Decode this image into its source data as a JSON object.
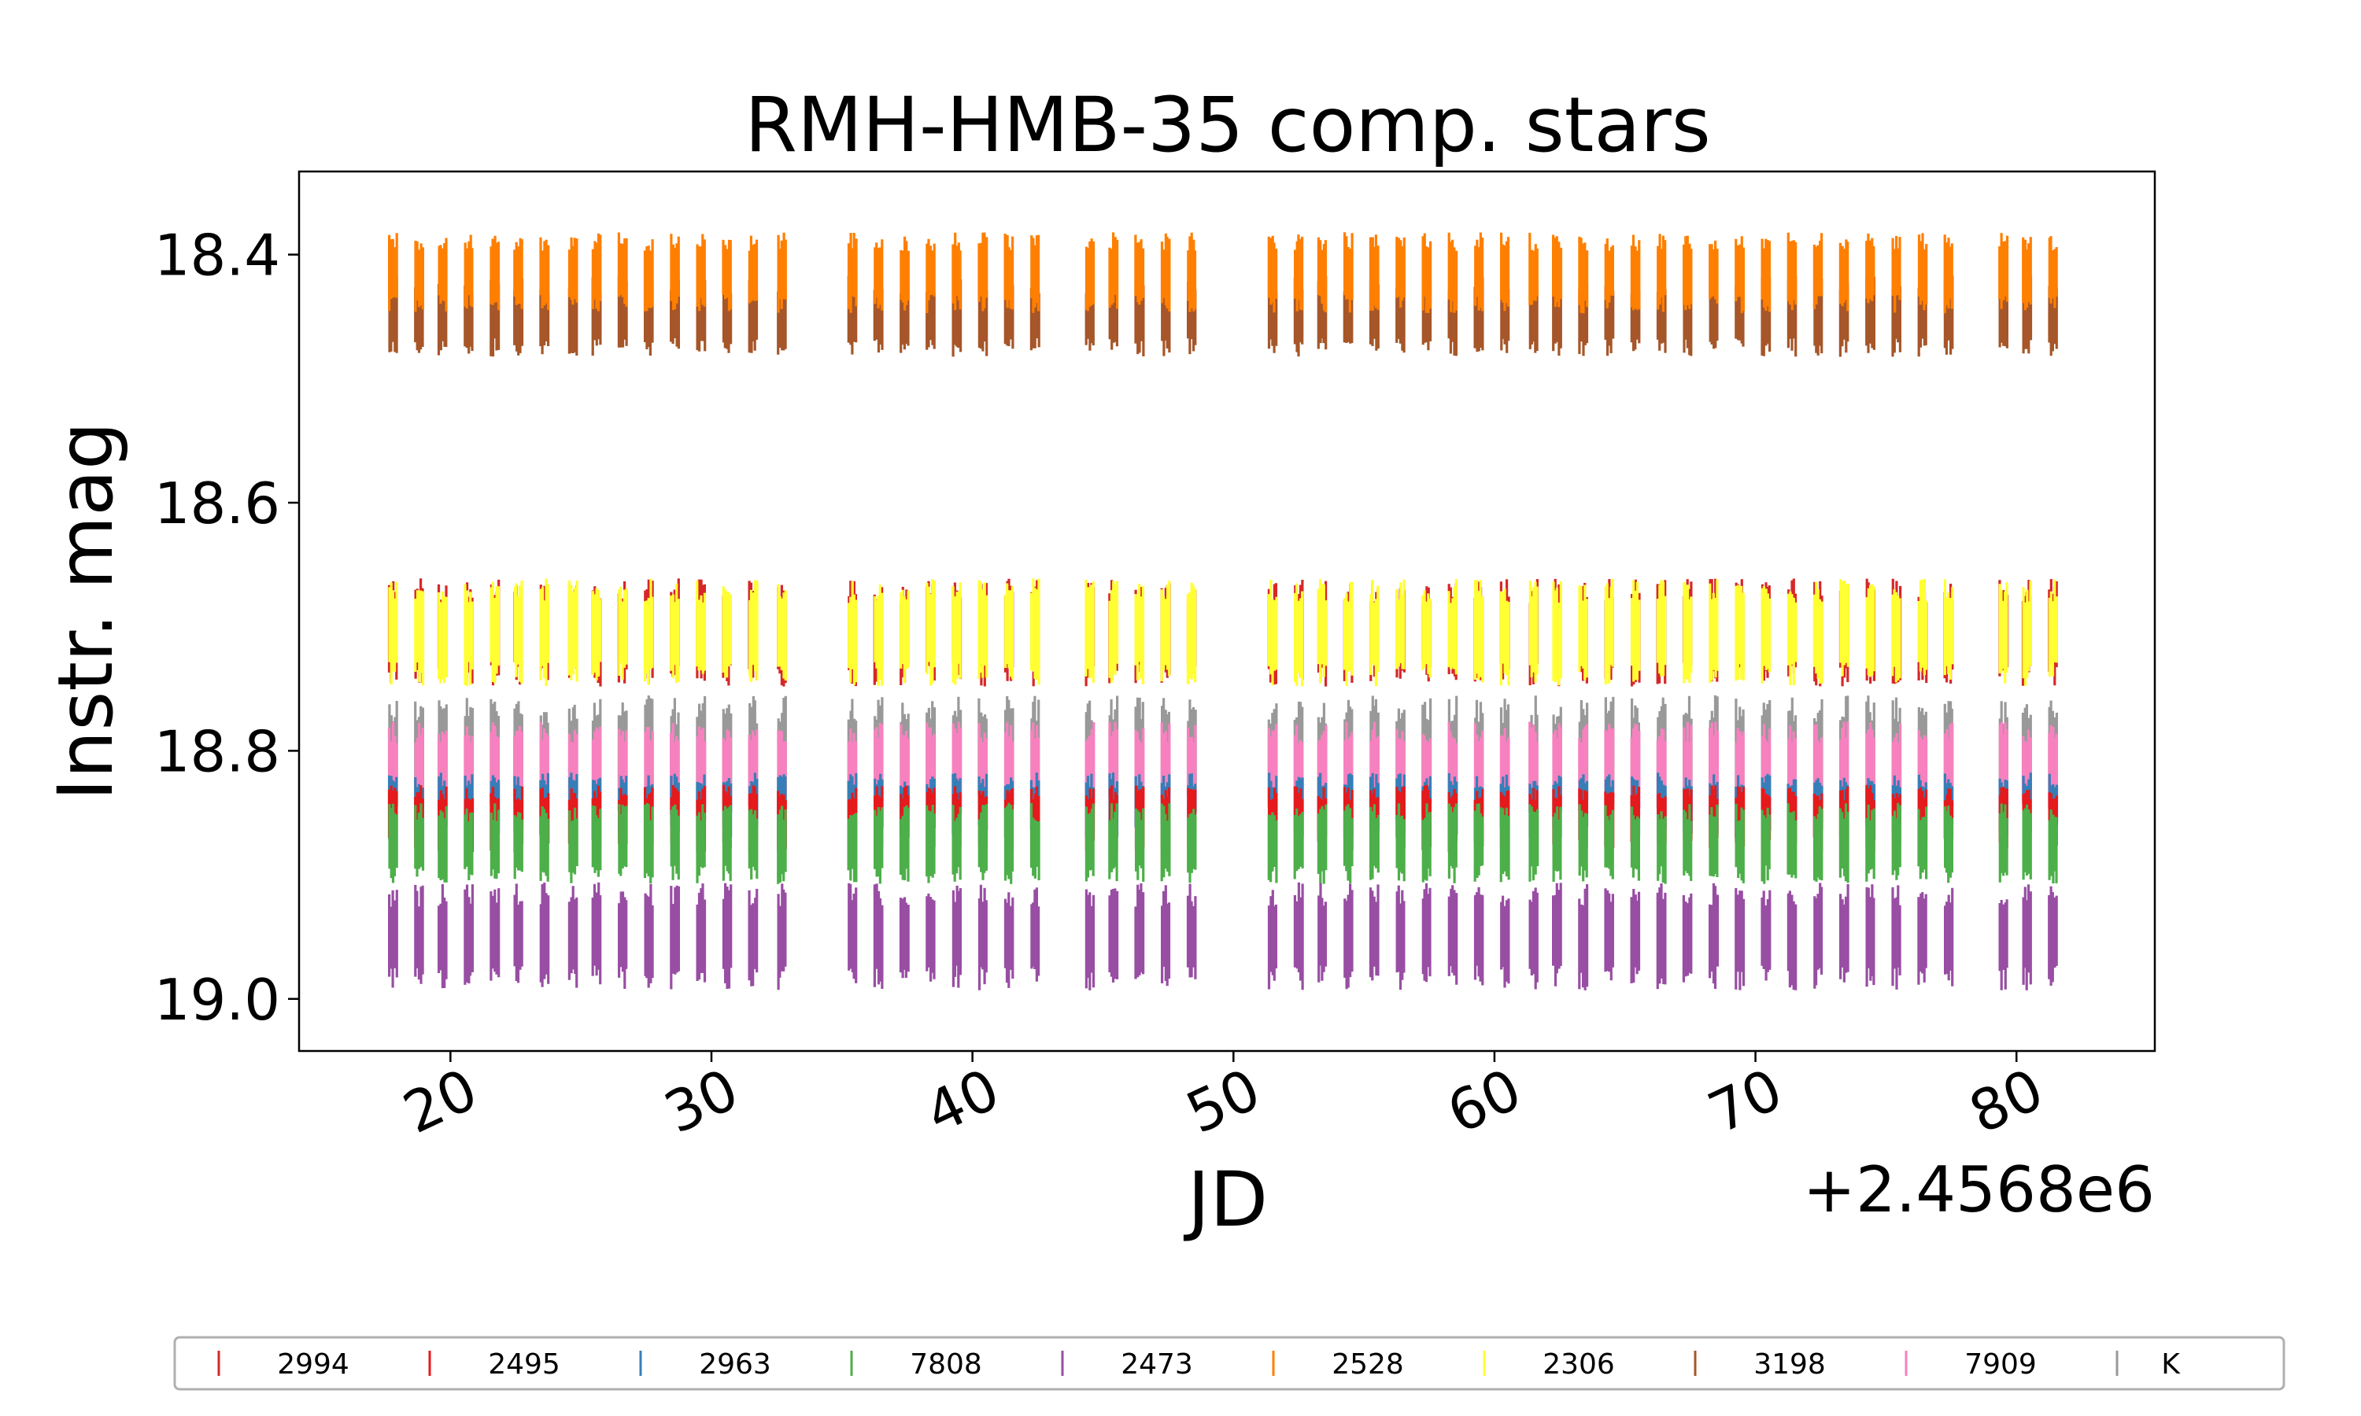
{
  "chart_data": {
    "type": "scatter",
    "title": "RMH-HMB-35 comp. stars",
    "xlabel": "JD",
    "ylabel": "Instr. mag",
    "x_offset_label": "+2.4568e6",
    "x_offset": 2456800,
    "xlim": [
      14.2,
      85.3
    ],
    "ylim": [
      19.042,
      18.333
    ],
    "y_inverted": true,
    "x_ticks": [
      20,
      30,
      40,
      50,
      60,
      70,
      80
    ],
    "x_tick_labels": [
      "20",
      "30",
      "40",
      "50",
      "60",
      "70",
      "80"
    ],
    "y_ticks": [
      18.4,
      18.6,
      18.8,
      19.0
    ],
    "y_tick_labels": [
      "18.4",
      "18.6",
      "18.8",
      "19.0"
    ],
    "observation_nights": [
      17.8,
      18.8,
      19.7,
      20.7,
      21.7,
      22.6,
      23.6,
      24.7,
      25.6,
      26.6,
      27.6,
      28.6,
      29.6,
      30.6,
      31.6,
      32.7,
      35.4,
      36.4,
      37.4,
      38.4,
      39.4,
      40.4,
      41.4,
      42.4,
      44.5,
      45.4,
      46.4,
      47.4,
      48.4,
      51.5,
      52.5,
      53.4,
      54.4,
      55.4,
      56.4,
      57.4,
      58.4,
      59.4,
      60.4,
      61.5,
      62.4,
      63.4,
      64.4,
      65.4,
      66.4,
      67.4,
      68.4,
      69.4,
      70.4,
      71.4,
      72.4,
      73.4,
      74.4,
      75.4,
      76.4,
      77.4,
      79.5,
      80.4,
      81.4
    ],
    "series": [
      {
        "name": "2994",
        "color": "#d62728",
        "mean_mag": 18.7,
        "range": [
          18.665,
          18.745
        ]
      },
      {
        "name": "2495",
        "color": "#e41a1c",
        "mean_mag": 18.855,
        "range": [
          18.83,
          18.88
        ]
      },
      {
        "name": "2963",
        "color": "#377eb8",
        "mean_mag": 18.845,
        "range": [
          18.82,
          18.87
        ]
      },
      {
        "name": "7808",
        "color": "#4daf4a",
        "mean_mag": 18.87,
        "range": [
          18.845,
          18.905
        ]
      },
      {
        "name": "2473",
        "color": "#984ea3",
        "mean_mag": 18.945,
        "range": [
          18.91,
          18.99
        ]
      },
      {
        "name": "2528",
        "color": "#ff7f00",
        "mean_mag": 18.415,
        "range": [
          18.385,
          18.445
        ]
      },
      {
        "name": "2306",
        "color": "#ffff33",
        "mean_mag": 18.705,
        "range": [
          18.665,
          18.745
        ]
      },
      {
        "name": "3198",
        "color": "#a65628",
        "mean_mag": 18.45,
        "range": [
          18.42,
          18.48
        ]
      },
      {
        "name": "7909",
        "color": "#f781bf",
        "mean_mag": 18.82,
        "range": [
          18.78,
          18.85
        ]
      },
      {
        "name": "K",
        "color": "#999999",
        "mean_mag": 18.81,
        "range": [
          18.76,
          18.855
        ]
      }
    ],
    "legend_placement": "bottom, outside plot"
  }
}
